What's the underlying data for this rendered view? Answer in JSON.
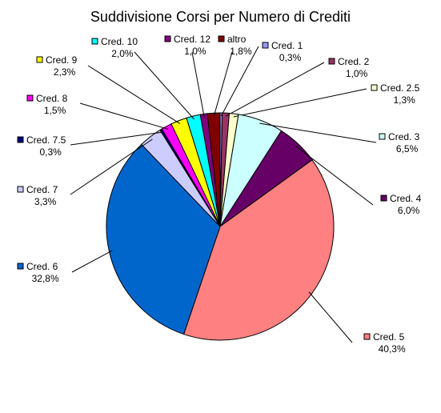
{
  "chart_data": {
    "type": "pie",
    "title": "Suddivisione Corsi per Numero di Crediti",
    "slices": [
      {
        "label": "Cred. 1",
        "value": 0.3,
        "value_label": "0,3%",
        "color": "#9999FF"
      },
      {
        "label": "Cred. 2",
        "value": 1.0,
        "value_label": "1,0%",
        "color": "#993366"
      },
      {
        "label": "Cred. 2.5",
        "value": 1.3,
        "value_label": "1,3%",
        "color": "#FFFFCC"
      },
      {
        "label": "Cred. 3",
        "value": 6.5,
        "value_label": "6,5%",
        "color": "#CCFFFF"
      },
      {
        "label": "Cred. 4",
        "value": 6.0,
        "value_label": "6,0%",
        "color": "#660066"
      },
      {
        "label": "Cred. 5",
        "value": 40.3,
        "value_label": "40,3%",
        "color": "#FF8080"
      },
      {
        "label": "Cred. 6",
        "value": 32.8,
        "value_label": "32,8%",
        "color": "#0066CC"
      },
      {
        "label": "Cred. 7",
        "value": 3.3,
        "value_label": "3,3%",
        "color": "#CCCCFF"
      },
      {
        "label": "Cred. 7.5",
        "value": 0.3,
        "value_label": "0,3%",
        "color": "#000080"
      },
      {
        "label": "Cred. 8",
        "value": 1.5,
        "value_label": "1,5%",
        "color": "#FF00FF"
      },
      {
        "label": "Cred. 9",
        "value": 2.3,
        "value_label": "2,3%",
        "color": "#FFFF00"
      },
      {
        "label": "Cred. 10",
        "value": 2.0,
        "value_label": "2,0%",
        "color": "#00FFFF"
      },
      {
        "label": "Cred. 12",
        "value": 1.0,
        "value_label": "1,0%",
        "color": "#800080"
      },
      {
        "label": "altro",
        "value": 1.8,
        "value_label": "1,8%",
        "color": "#800000"
      }
    ],
    "start": "12 o'clock",
    "direction": "clockwise",
    "legend": "labels next to slices with leader lines"
  }
}
